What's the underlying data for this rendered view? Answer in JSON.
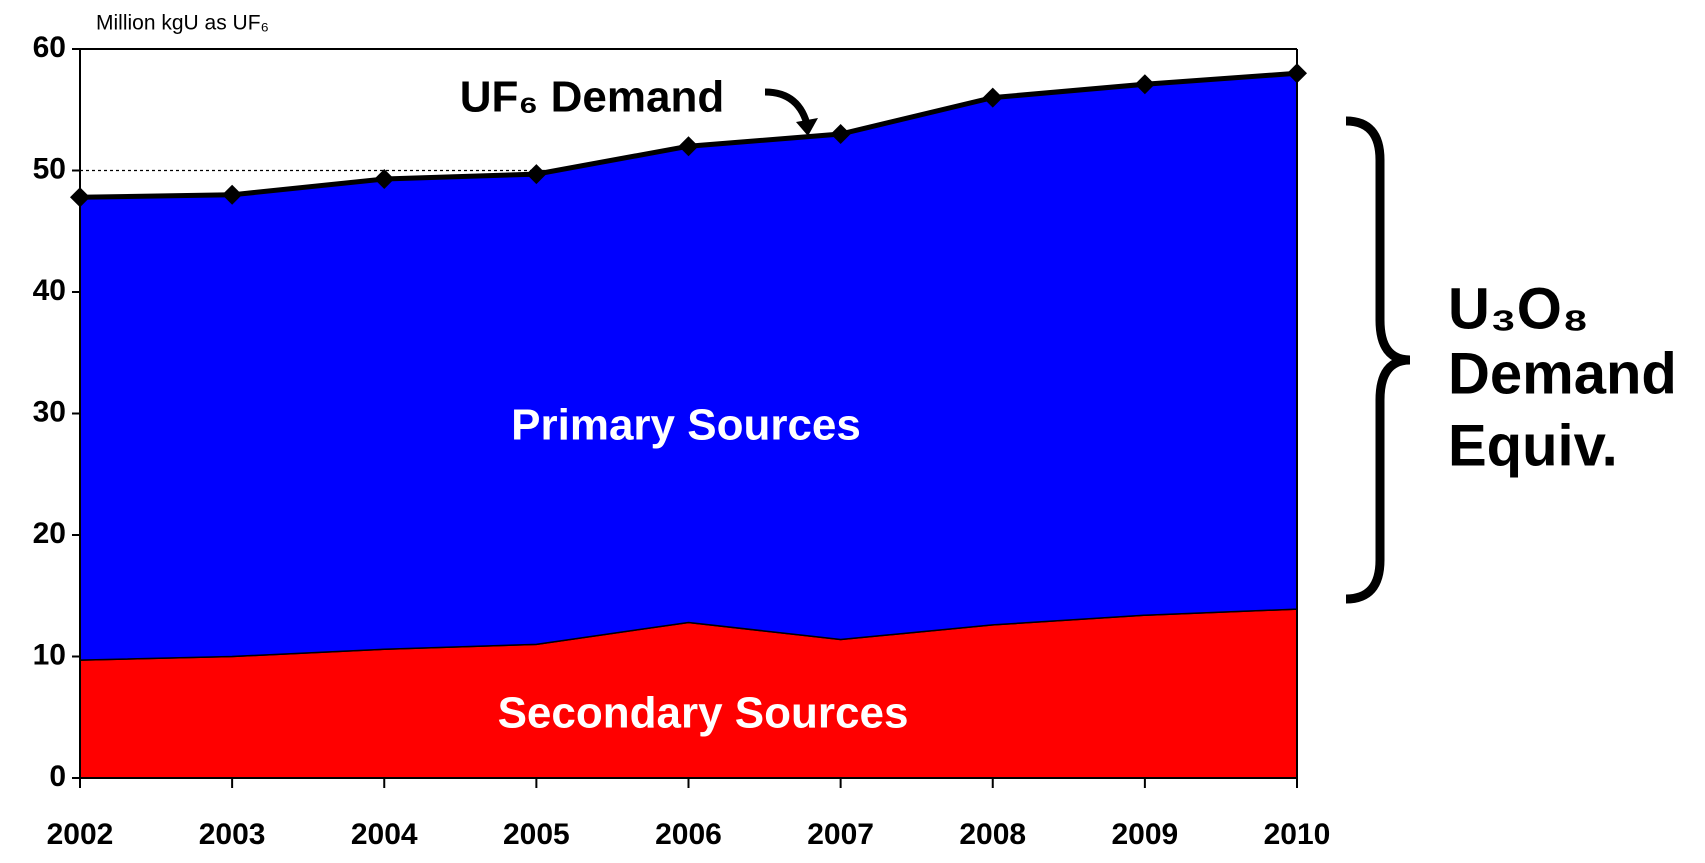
{
  "chart_data": {
    "type": "stacked-area",
    "y_label": "Million kgU as UF₆",
    "x": [
      2002,
      2003,
      2004,
      2005,
      2006,
      2007,
      2008,
      2009,
      2010
    ],
    "xlim": [
      2002,
      2010
    ],
    "xticks": [
      2002,
      2003,
      2004,
      2005,
      2006,
      2007,
      2008,
      2009,
      2010
    ],
    "ylim": [
      0,
      60
    ],
    "yticks": [
      0,
      10,
      20,
      30,
      40,
      50,
      60
    ],
    "grid": true,
    "series": [
      {
        "name": "Secondary Sources",
        "color": "#ff0000",
        "values": [
          9.7,
          10,
          10.6,
          11,
          12.8,
          11.4,
          12.6,
          13.4,
          13.9
        ]
      },
      {
        "name": "Primary Sources",
        "color": "#0000ff",
        "values": [
          38.1,
          38,
          38.7,
          38.7,
          39.2,
          41.6,
          43.4,
          43.7,
          44.1
        ]
      }
    ],
    "line_series": {
      "name": "UF₆ Demand",
      "color": "#000000",
      "values": [
        47.8,
        48,
        49.3,
        49.7,
        52,
        53,
        56,
        57.1,
        58
      ]
    },
    "annotation": [
      "U₃O₈",
      "Demand",
      "Equiv."
    ]
  }
}
